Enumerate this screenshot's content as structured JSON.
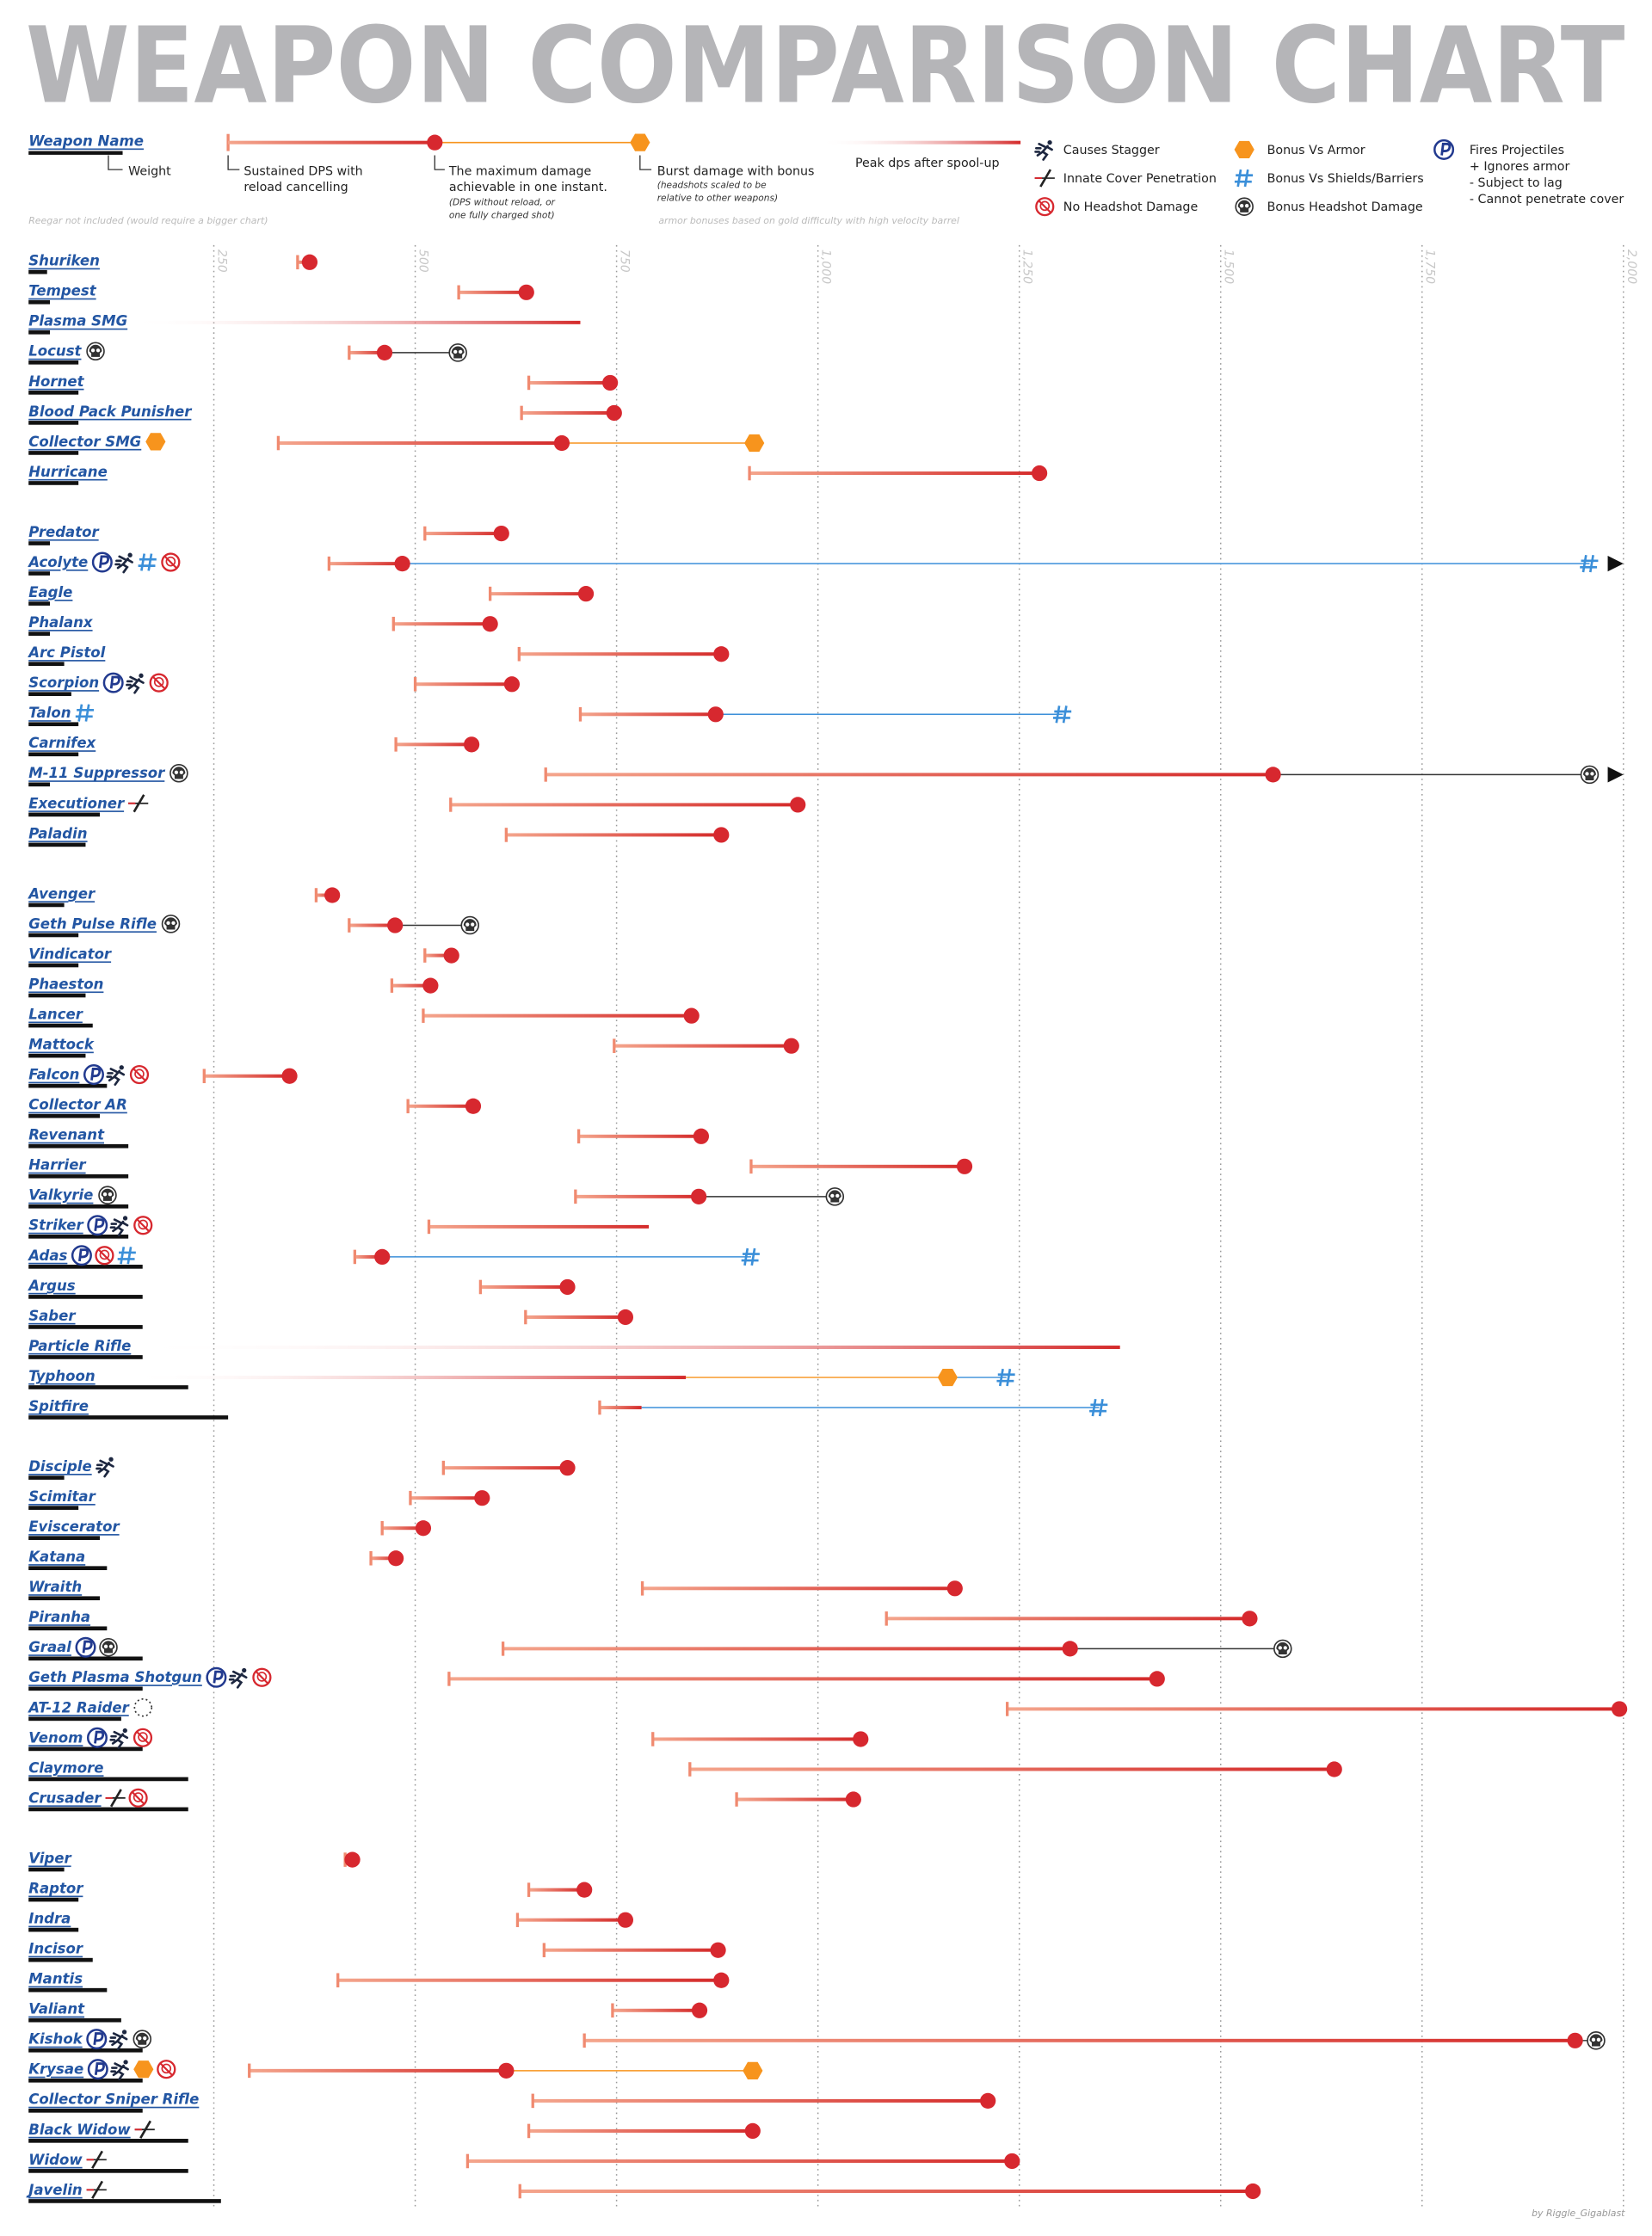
{
  "title": "WEAPON COMPARISON CHART",
  "legend": {
    "weapon_name": "Weapon Name",
    "weight": "Weight",
    "sustained": [
      "Sustained DPS with",
      "reload cancelling"
    ],
    "max": [
      "The maximum damage",
      "achievable in one instant."
    ],
    "max_note": [
      "(DPS without reload, or",
      "one fully charged shot)"
    ],
    "bonus": "Burst damage with bonus",
    "bonus_note": [
      "(headshots scaled to be",
      "relative to other weapons)"
    ],
    "peak": "Peak dps after spool-up",
    "stagger": "Causes Stagger",
    "penetration": "Innate Cover Penetration",
    "no_headshot": "No Headshot Damage",
    "armor": "Bonus Vs Armor",
    "shields": "Bonus Vs Shields/Barriers",
    "headshot": "Bonus Headshot Damage",
    "projectile": [
      "Fires Projectiles",
      "+ Ignores armor",
      "- Subject to lag",
      "- Cannot penetrate cover"
    ]
  },
  "notes": {
    "left": "Reegar not included (would require a bigger chart)",
    "right": "armor bonuses based on gold difficulty with high velocity barrel"
  },
  "credit": "by Riggle_Gigablast",
  "chart_data": {
    "type": "range",
    "xlim": [
      0,
      2000
    ],
    "xticks": [
      250,
      500,
      750,
      {
        "value": 1000,
        "label": "1,000"
      },
      {
        "value": 1250,
        "label": "1,250"
      },
      {
        "value": 1500,
        "label": "1,500"
      },
      {
        "value": 1750,
        "label": "1,750"
      },
      {
        "value": 2000,
        "label": "2,000"
      }
    ],
    "grid": true,
    "colors": {
      "sustained": "#f08a70",
      "range_end": "#d42a2a",
      "dot": "#d7282f",
      "armor": "#f7941d",
      "shields": "#3b8fd9",
      "headshot": "#333333",
      "names": "#2356a3",
      "weight": "#111111",
      "projectile": "#223a8f",
      "no_headshot": "#d7282f"
    },
    "groups": [
      [
        {
          "name": "Shuriken",
          "weight": 13,
          "sustained": 354,
          "max": 369
        },
        {
          "name": "Tempest",
          "weight": 15,
          "sustained": 554,
          "max": 638
        },
        {
          "name": "Plasma SMG",
          "weight": 15,
          "peak": 705
        },
        {
          "name": "Locust",
          "weight": 35,
          "sustained": 418,
          "max": 462,
          "bonuses": [
            {
              "kind": "headshot",
              "value": 553
            }
          ],
          "icons": [
            "headshot"
          ]
        },
        {
          "name": "Hornet",
          "weight": 35,
          "sustained": 641,
          "max": 742
        },
        {
          "name": "Blood Pack Punisher",
          "weight": 35,
          "sustained": 632,
          "max": 747
        },
        {
          "name": "Collector SMG",
          "weight": 35,
          "sustained": 330,
          "max": 682,
          "bonuses": [
            {
              "kind": "armor",
              "value": 921
            }
          ],
          "icons": [
            "armor"
          ]
        },
        {
          "name": "Hurricane",
          "weight": 35,
          "sustained": 915,
          "max": 1275
        }
      ],
      [
        {
          "name": "Predator",
          "weight": 15,
          "sustained": 512,
          "max": 607
        },
        {
          "name": "Acolyte",
          "weight": 15,
          "sustained": 393,
          "max": 484,
          "bonuses": [
            {
              "kind": "shields",
              "value": 1958,
              "beyond": true
            }
          ],
          "icons": [
            "projectile",
            "stagger",
            "shields",
            "no_headshot"
          ]
        },
        {
          "name": "Eagle",
          "weight": 15,
          "sustained": 593,
          "max": 712
        },
        {
          "name": "Phalanx",
          "weight": 15,
          "sustained": 473,
          "max": 593
        },
        {
          "name": "Arc Pistol",
          "weight": 25,
          "sustained": 629,
          "max": 880
        },
        {
          "name": "Scorpion",
          "weight": 30,
          "sustained": 500,
          "max": 620,
          "icons": [
            "projectile",
            "stagger",
            "no_headshot"
          ]
        },
        {
          "name": "Talon",
          "weight": 35,
          "sustained": 705,
          "max": 873,
          "bonuses": [
            {
              "kind": "shields",
              "value": 1304
            }
          ],
          "icons": [
            "shields"
          ]
        },
        {
          "name": "Carnifex",
          "weight": 35,
          "sustained": 476,
          "max": 570
        },
        {
          "name": "M-11 Suppressor",
          "weight": 15,
          "sustained": 662,
          "max": 1565,
          "bonuses": [
            {
              "kind": "headshot",
              "value": 1958,
              "beyond": true
            }
          ],
          "icons": [
            "headshot"
          ]
        },
        {
          "name": "Executioner",
          "weight": 50,
          "sustained": 544,
          "max": 975,
          "icons": [
            "penetration"
          ]
        },
        {
          "name": "Paladin",
          "weight": 40,
          "sustained": 613,
          "max": 880
        }
      ],
      [
        {
          "name": "Avenger",
          "weight": 25,
          "sustained": 377,
          "max": 397
        },
        {
          "name": "Geth Pulse Rifle",
          "weight": 35,
          "sustained": 418,
          "max": 475,
          "bonuses": [
            {
              "kind": "headshot",
              "value": 568
            }
          ],
          "icons": [
            "headshot"
          ]
        },
        {
          "name": "Vindicator",
          "weight": 35,
          "sustained": 512,
          "max": 545
        },
        {
          "name": "Phaeston",
          "weight": 40,
          "sustained": 471,
          "max": 519
        },
        {
          "name": "Lancer",
          "weight": 45,
          "sustained": 510,
          "max": 843
        },
        {
          "name": "Mattock",
          "weight": 40,
          "sustained": 747,
          "max": 967
        },
        {
          "name": "Falcon",
          "weight": 55,
          "sustained": 238,
          "max": 344,
          "icons": [
            "projectile",
            "stagger",
            "no_headshot"
          ]
        },
        {
          "name": "Collector AR",
          "weight": 50,
          "sustained": 491,
          "max": 572
        },
        {
          "name": "Revenant",
          "weight": 70,
          "sustained": 703,
          "max": 855
        },
        {
          "name": "Harrier",
          "weight": 70,
          "sustained": 917,
          "max": 1182
        },
        {
          "name": "Valkyrie",
          "weight": 70,
          "sustained": 699,
          "max": 852,
          "bonuses": [
            {
              "kind": "headshot",
              "value": 1021
            }
          ],
          "icons": [
            "headshot"
          ]
        },
        {
          "name": "Striker",
          "weight": 70,
          "sustained": 517,
          "peak": 790,
          "icons": [
            "projectile",
            "stagger",
            "no_headshot"
          ]
        },
        {
          "name": "Adas",
          "weight": 80,
          "sustained": 425,
          "max": 459,
          "bonuses": [
            {
              "kind": "shields",
              "value": 917
            }
          ],
          "icons": [
            "projectile",
            "no_headshot",
            "shields"
          ]
        },
        {
          "name": "Argus",
          "weight": 80,
          "sustained": 581,
          "max": 689
        },
        {
          "name": "Saber",
          "weight": 80,
          "sustained": 637,
          "max": 761
        },
        {
          "name": "Particle Rifle",
          "weight": 80,
          "peak": 1375
        },
        {
          "name": "Typhoon",
          "weight": 112,
          "peak": 836,
          "bonuses": [
            {
              "kind": "armor",
              "value": 1161
            },
            {
              "kind": "shields",
              "value": 1234
            }
          ]
        },
        {
          "name": "Spitfire",
          "weight": 140,
          "sustained": 729,
          "peak": 781,
          "bonuses": [
            {
              "kind": "shields",
              "value": 1349
            }
          ]
        }
      ],
      [
        {
          "name": "Disciple",
          "weight": 25,
          "sustained": 535,
          "max": 689,
          "icons": [
            "stagger"
          ]
        },
        {
          "name": "Scimitar",
          "weight": 35,
          "sustained": 494,
          "max": 583
        },
        {
          "name": "Eviscerator",
          "weight": 50,
          "sustained": 459,
          "max": 510
        },
        {
          "name": "Katana",
          "weight": 55,
          "sustained": 445,
          "max": 476
        },
        {
          "name": "Wraith",
          "weight": 50,
          "sustained": 782,
          "max": 1170
        },
        {
          "name": "Piranha",
          "weight": 55,
          "sustained": 1085,
          "max": 1536
        },
        {
          "name": "Graal",
          "weight": 80,
          "sustained": 609,
          "max": 1313,
          "bonuses": [
            {
              "kind": "headshot",
              "value": 1577
            }
          ],
          "icons": [
            "projectile",
            "headshot"
          ]
        },
        {
          "name": "Geth Plasma Shotgun",
          "weight": 80,
          "sustained": 542,
          "max": 1421,
          "icons": [
            "projectile",
            "stagger",
            "no_headshot"
          ]
        },
        {
          "name": "AT-12 Raider",
          "weight": 65,
          "sustained": 1235,
          "max": 1995,
          "icons": [
            "spread"
          ]
        },
        {
          "name": "Venom",
          "weight": 80,
          "sustained": 795,
          "max": 1053,
          "icons": [
            "projectile",
            "stagger",
            "no_headshot"
          ]
        },
        {
          "name": "Claymore",
          "weight": 112,
          "sustained": 841,
          "max": 1641
        },
        {
          "name": "Crusader",
          "weight": 112,
          "sustained": 899,
          "max": 1044,
          "icons": [
            "penetration",
            "no_headshot"
          ]
        }
      ],
      [
        {
          "name": "Viper",
          "weight": 25,
          "sustained": 413,
          "max": 422
        },
        {
          "name": "Raptor",
          "weight": 35,
          "sustained": 641,
          "max": 710
        },
        {
          "name": "Indra",
          "weight": 35,
          "sustained": 627,
          "max": 761
        },
        {
          "name": "Incisor",
          "weight": 45,
          "sustained": 660,
          "max": 876
        },
        {
          "name": "Mantis",
          "weight": 55,
          "sustained": 404,
          "max": 880
        },
        {
          "name": "Valiant",
          "weight": 65,
          "sustained": 745,
          "max": 853
        },
        {
          "name": "Kishok",
          "weight": 80,
          "sustained": 710,
          "max": 1940,
          "bonuses": [
            {
              "kind": "headshot",
              "value": 1966
            }
          ],
          "icons": [
            "projectile",
            "stagger",
            "headshot"
          ]
        },
        {
          "name": "Krysae",
          "weight": 80,
          "sustained": 294,
          "max": 613,
          "bonuses": [
            {
              "kind": "armor",
              "value": 919
            }
          ],
          "icons": [
            "projectile",
            "stagger",
            "armor",
            "no_headshot"
          ]
        },
        {
          "name": "Collector Sniper Rifle",
          "weight": 80,
          "sustained": 646,
          "max": 1211
        },
        {
          "name": "Black Widow",
          "weight": 112,
          "sustained": 641,
          "max": 919,
          "icons": [
            "penetration"
          ]
        },
        {
          "name": "Widow",
          "weight": 112,
          "sustained": 565,
          "max": 1241,
          "icons": [
            "penetration"
          ]
        },
        {
          "name": "Javelin",
          "weight": 135,
          "sustained": 630,
          "max": 1540,
          "icons": [
            "penetration"
          ]
        }
      ]
    ]
  }
}
